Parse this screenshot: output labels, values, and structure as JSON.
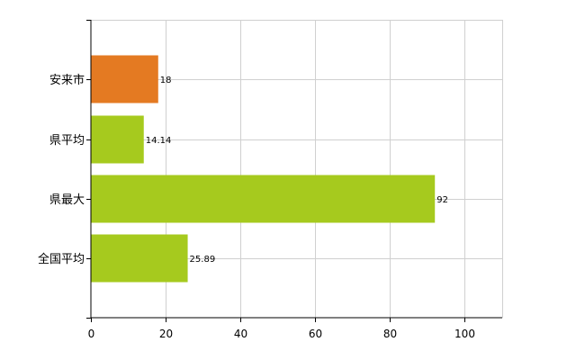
{
  "chart_data": {
    "type": "bar",
    "orientation": "horizontal",
    "title": "",
    "xlabel": "",
    "ylabel": "",
    "categories": [
      "安来市",
      "県平均",
      "県最大",
      "全国平均"
    ],
    "values": [
      18,
      14.14,
      92,
      25.89
    ],
    "data_labels": [
      "18",
      "14.14",
      "92",
      "25.89"
    ],
    "bar_colors": [
      "#e47a22",
      "#a6ca1e",
      "#a6ca1e",
      "#a6ca1e"
    ],
    "xlim": [
      0,
      110
    ],
    "xticks": [
      0,
      20,
      40,
      60,
      80,
      100
    ],
    "xtick_labels": [
      "0",
      "20",
      "40",
      "60",
      "80",
      "100"
    ],
    "grid": true,
    "legend": "none"
  }
}
